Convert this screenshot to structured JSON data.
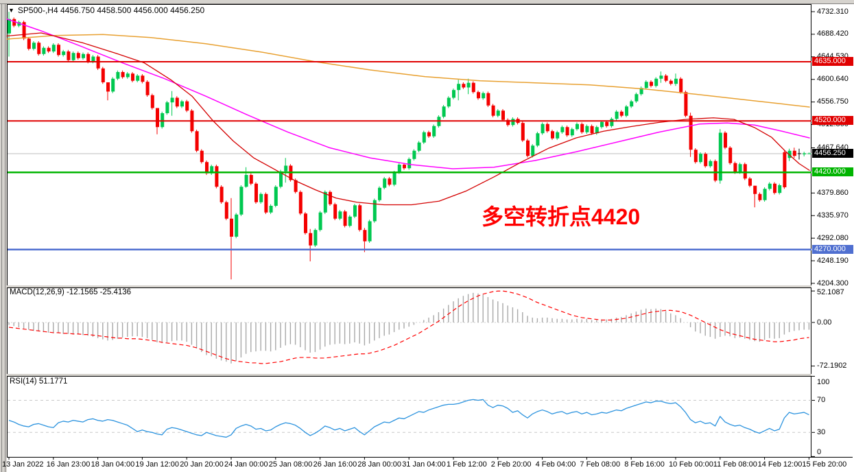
{
  "window": {
    "title_text": "SP500-,H4  4456.750 4458.500 4456.000 4456.250",
    "symbol": "SP500-",
    "timeframe": "H4",
    "ohlc": {
      "open": "4456.750",
      "high": "4458.500",
      "low": "4456.000",
      "close": "4456.250"
    }
  },
  "annotation": {
    "text": "多空转折点4420",
    "color": "#FF0000"
  },
  "colors": {
    "bull": "#00C850",
    "bear": "#F40000",
    "doji": "#000000",
    "ma_fast_red": "#D40000",
    "ma_mid_magenta": "#FF00FF",
    "ma_slow_orange": "#E8A030",
    "level_red": "#E00000",
    "level_green": "#00B400",
    "level_blue": "#4F6FD0",
    "current_price_line": "#BEBEBE",
    "macd_hist": "#A8A8A8",
    "macd_signal": "#FF0000",
    "rsi_line": "#2A92DE",
    "panel_bg": "#FFFFFF",
    "frame": "#000000",
    "window_bg": "#D6D3CE"
  },
  "levels": [
    {
      "price": 4635,
      "color": "#E00000",
      "width": 2
    },
    {
      "price": 4520,
      "color": "#E00000",
      "width": 2
    },
    {
      "price": 4420,
      "color": "#00B400",
      "width": 2.5
    },
    {
      "price": 4270,
      "color": "#4F6FD0",
      "width": 2.5
    }
  ],
  "price_axis": {
    "ticks": [
      {
        "label": "4732.310",
        "price": 4732.31
      },
      {
        "label": "4688.420",
        "price": 4688.42
      },
      {
        "label": "4644.530",
        "price": 4644.53
      },
      {
        "label": "4600.640",
        "price": 4600.64
      },
      {
        "label": "4556.750",
        "price": 4556.75
      },
      {
        "label": "4512.860",
        "price": 4512.86
      },
      {
        "label": "4467.640",
        "price": 4467.64
      },
      {
        "label": "4379.860",
        "price": 4379.86
      },
      {
        "label": "4335.970",
        "price": 4335.97
      },
      {
        "label": "4292.080",
        "price": 4292.08
      },
      {
        "label": "4248.190",
        "price": 4248.19
      },
      {
        "label": "4204.300",
        "price": 4204.3
      }
    ],
    "tags": [
      {
        "label": "4635.000",
        "price": 4635,
        "bg": "#E00000"
      },
      {
        "label": "4520.000",
        "price": 4520,
        "bg": "#E00000"
      },
      {
        "label": "4456.250",
        "price": 4456.25,
        "bg": "#000000"
      },
      {
        "label": "4420.000",
        "price": 4420,
        "bg": "#00B400"
      },
      {
        "label": "4270.000",
        "price": 4270,
        "bg": "#4F6FD0"
      }
    ]
  },
  "time_axis": {
    "labels": [
      "13 Jan 2022",
      "16 Jan 23:00",
      "18 Jan 04:00",
      "19 Jan 12:00",
      "20 Jan 20:00",
      "24 Jan 00:00",
      "25 Jan 08:00",
      "26 Jan 16:00",
      "28 Jan 00:00",
      "31 Jan 04:00",
      "1 Feb 12:00",
      "2 Feb 20:00",
      "4 Feb 04:00",
      "7 Feb 08:00",
      "8 Feb 16:00",
      "10 Feb 00:00",
      "11 Feb 08:00",
      "14 Feb 12:00",
      "15 Feb 20:00"
    ]
  },
  "indicators": {
    "macd": {
      "label": "MACD(12,26,9) -12.1565 -25.4136",
      "value_main": "-12.1565",
      "value_signal": "-25.4136",
      "axis": [
        {
          "label": "52.1087",
          "value": 52.1087
        },
        {
          "label": "0.00",
          "value": 0
        },
        {
          "label": "-72.1902",
          "value": -72.1902
        }
      ],
      "hist": [
        -4,
        -6,
        -8,
        -10,
        -12,
        -14,
        -15,
        -16,
        -17,
        -18,
        -18,
        -19,
        -19,
        -20,
        -20,
        -21,
        -22,
        -24,
        -26,
        -28,
        -30,
        -29,
        -27,
        -25,
        -24,
        -23,
        -23,
        -24,
        -26,
        -29,
        -33,
        -34,
        -33,
        -31,
        -30,
        -30,
        -32,
        -37,
        -43,
        -49,
        -54,
        -56,
        -60,
        -63,
        -65,
        -68,
        -64,
        -58,
        -52,
        -49,
        -48,
        -47,
        -47,
        -48,
        -46,
        -42,
        -38,
        -36,
        -37,
        -41,
        -46,
        -50,
        -49,
        -45,
        -40,
        -37,
        -36,
        -35,
        -36,
        -35,
        -33,
        -35,
        -38,
        -35,
        -30,
        -26,
        -22,
        -20,
        -16,
        -12,
        -10,
        -7,
        -4,
        0,
        4,
        8,
        12,
        17,
        23,
        29,
        35,
        40,
        44,
        47,
        49,
        48,
        46,
        42,
        38,
        35,
        32,
        28,
        25,
        22,
        17,
        11,
        8,
        7,
        8,
        8,
        7,
        6,
        6,
        5,
        5,
        6,
        5,
        6,
        4,
        4,
        5,
        5,
        6,
        8,
        9,
        12,
        15,
        18,
        21,
        23,
        22,
        23,
        22,
        19,
        15,
        12,
        7,
        0,
        -8,
        -15,
        -18,
        -22,
        -24,
        -27,
        -24,
        -22,
        -23,
        -26,
        -25,
        -27,
        -29,
        -31,
        -32,
        -29,
        -26,
        -27,
        -26,
        -20,
        -16,
        -14,
        -13,
        -12,
        -12
      ],
      "signal": [
        -8,
        -9,
        -10,
        -11,
        -12,
        -13,
        -14,
        -15,
        -16,
        -17,
        -17,
        -18,
        -18,
        -19,
        -19,
        -20,
        -20,
        -21,
        -22,
        -23,
        -24,
        -25,
        -26,
        -26,
        -27,
        -27,
        -27,
        -28,
        -29,
        -30,
        -31,
        -33,
        -34,
        -35,
        -36,
        -37,
        -38,
        -40,
        -42,
        -45,
        -48,
        -51,
        -54,
        -57,
        -60,
        -62,
        -64,
        -65,
        -66,
        -67,
        -67,
        -68,
        -68,
        -67,
        -66,
        -65,
        -63,
        -61,
        -59,
        -58,
        -58,
        -58,
        -59,
        -59,
        -59,
        -58,
        -57,
        -56,
        -55,
        -54,
        -53,
        -52,
        -52,
        -51,
        -49,
        -47,
        -44,
        -41,
        -38,
        -34,
        -30,
        -26,
        -22,
        -18,
        -13,
        -8,
        -3,
        2,
        8,
        14,
        20,
        26,
        31,
        36,
        40,
        44,
        47,
        49,
        51,
        52,
        52,
        51,
        49,
        47,
        44,
        41,
        37,
        33,
        30,
        27,
        24,
        21,
        18,
        15,
        12,
        10,
        8,
        7,
        6,
        5,
        4,
        4,
        4,
        5,
        6,
        7,
        9,
        11,
        13,
        15,
        17,
        18,
        19,
        20,
        20,
        19,
        18,
        15,
        12,
        8,
        4,
        0,
        -4,
        -8,
        -12,
        -15,
        -18,
        -20,
        -22,
        -24,
        -26,
        -28,
        -29,
        -30,
        -31,
        -32,
        -32,
        -31,
        -30,
        -29,
        -27,
        -26,
        -25
      ]
    },
    "rsi": {
      "label": "RSI(14) 51.1771",
      "value": "51.1771",
      "levels": [
        70,
        30
      ],
      "axis": [
        {
          "label": "100",
          "value": 100
        },
        {
          "label": "70",
          "value": 70
        },
        {
          "label": "30",
          "value": 30
        },
        {
          "label": "0",
          "value": 0
        }
      ],
      "values": [
        45,
        43,
        40,
        38,
        37,
        40,
        41,
        39,
        37,
        36,
        42,
        44,
        43,
        45,
        44,
        43,
        46,
        47,
        45,
        44,
        46,
        45,
        43,
        41,
        39,
        35,
        31,
        33,
        31,
        30,
        28,
        27,
        34,
        36,
        35,
        33,
        31,
        29,
        27,
        26,
        30,
        28,
        26,
        25,
        24,
        27,
        35,
        38,
        40,
        38,
        34,
        35,
        32,
        33,
        37,
        40,
        42,
        41,
        39,
        35,
        30,
        26,
        29,
        33,
        38,
        36,
        33,
        35,
        32,
        34,
        36,
        31,
        27,
        32,
        37,
        40,
        43,
        42,
        45,
        48,
        47,
        50,
        53,
        56,
        55,
        58,
        60,
        62,
        64,
        65,
        65,
        66,
        68,
        70,
        71,
        70,
        71,
        64,
        61,
        64,
        63,
        60,
        55,
        57,
        52,
        48,
        53,
        56,
        58,
        56,
        53,
        55,
        56,
        53,
        55,
        56,
        53,
        55,
        52,
        53,
        55,
        54,
        56,
        58,
        57,
        60,
        62,
        64,
        66,
        68,
        67,
        69,
        69,
        67,
        66,
        67,
        62,
        55,
        46,
        42,
        44,
        41,
        42,
        38,
        50,
        43,
        40,
        38,
        39,
        36,
        34,
        31,
        29,
        32,
        35,
        32,
        34,
        48,
        55,
        53,
        54,
        55,
        52
      ]
    }
  },
  "chart_data": {
    "type": "candlestick",
    "title": "SP500-,H4",
    "symbol": "SP500",
    "timeframe": "H4",
    "ylim": [
      4204.3,
      4732.31
    ],
    "open_first": 4690,
    "closes": [
      4718,
      4705,
      4712,
      4680,
      4660,
      4672,
      4650,
      4662,
      4655,
      4668,
      4648,
      4655,
      4638,
      4652,
      4642,
      4650,
      4635,
      4645,
      4622,
      4595,
      4577,
      4602,
      4615,
      4605,
      4612,
      4598,
      4608,
      4596,
      4570,
      4545,
      4508,
      4535,
      4556,
      4565,
      4548,
      4558,
      4540,
      4500,
      4462,
      4440,
      4418,
      4432,
      4392,
      4362,
      4330,
      4295,
      4338,
      4392,
      4415,
      4398,
      4362,
      4378,
      4342,
      4355,
      4392,
      4422,
      4433,
      4405,
      4382,
      4340,
      4302,
      4278,
      4308,
      4342,
      4382,
      4358,
      4330,
      4344,
      4316,
      4334,
      4356,
      4308,
      4286,
      4325,
      4366,
      4390,
      4408,
      4396,
      4420,
      4435,
      4428,
      4446,
      4462,
      4478,
      4498,
      4490,
      4510,
      4528,
      4548,
      4565,
      4580,
      4592,
      4585,
      4594,
      4576,
      4564,
      4574,
      4550,
      4530,
      4540,
      4522,
      4512,
      4524,
      4516,
      4482,
      4452,
      4472,
      4496,
      4514,
      4500,
      4486,
      4498,
      4508,
      4492,
      4504,
      4514,
      4498,
      4510,
      4496,
      4508,
      4518,
      4510,
      4524,
      4538,
      4530,
      4548,
      4558,
      4572,
      4584,
      4596,
      4588,
      4602,
      4608,
      4598,
      4592,
      4602,
      4576,
      4530,
      4464,
      4440,
      4456,
      4432,
      4442,
      4404,
      4497,
      4468,
      4438,
      4420,
      4436,
      4408,
      4394,
      4378,
      4366,
      4388,
      4398,
      4380,
      4395,
      4391,
      4462,
      4452,
      4456,
      4457,
      4456.25
    ],
    "wicks": {
      "0": [
        4732,
        4645
      ],
      "20": [
        4584,
        4560
      ],
      "30": [
        4542,
        4494
      ],
      "33": [
        4578,
        4530
      ],
      "45": [
        4370,
        4212
      ],
      "48": [
        4430,
        4390
      ],
      "56": [
        4448,
        4400
      ],
      "61": [
        4310,
        4247
      ],
      "72": [
        4312,
        4265
      ],
      "91": [
        4600,
        4560
      ],
      "93": [
        4602,
        4572
      ],
      "132": [
        4616,
        4594
      ],
      "135": [
        4612,
        4588
      ],
      "138": [
        4536,
        4450
      ],
      "144": [
        4504,
        4398
      ],
      "151": [
        4394,
        4352
      ]
    },
    "explicit": {
      "157": [
        4459,
        4462,
        4388,
        4391
      ],
      "158": [
        4448,
        4466,
        4442,
        4462
      ],
      "159": [
        4462,
        4468,
        4448,
        4452
      ],
      "160": [
        4457,
        4466,
        4445,
        4456
      ],
      "161": [
        4455,
        4460,
        4451,
        4457
      ],
      "162": [
        4456.75,
        4458.5,
        4456,
        4456.25
      ]
    },
    "color_overrides": {
      "160": "#000000",
      "162": "#00C850"
    },
    "ma_slow_orange": [
      [
        10,
        4679
      ],
      [
        80,
        4686
      ],
      [
        150,
        4688
      ],
      [
        220,
        4682
      ],
      [
        300,
        4670
      ],
      [
        380,
        4654
      ],
      [
        460,
        4635
      ],
      [
        540,
        4619
      ],
      [
        620,
        4606
      ],
      [
        700,
        4598
      ],
      [
        780,
        4594
      ],
      [
        860,
        4590
      ],
      [
        940,
        4582
      ],
      [
        1020,
        4571
      ],
      [
        1100,
        4559
      ],
      [
        1180,
        4547
      ]
    ],
    "ma_mid_magenta": [
      [
        10,
        4718
      ],
      [
        60,
        4695
      ],
      [
        120,
        4664
      ],
      [
        180,
        4632
      ],
      [
        240,
        4602
      ],
      [
        300,
        4568
      ],
      [
        360,
        4532
      ],
      [
        420,
        4498
      ],
      [
        480,
        4468
      ],
      [
        540,
        4448
      ],
      [
        600,
        4435
      ],
      [
        660,
        4427
      ],
      [
        720,
        4430
      ],
      [
        780,
        4443
      ],
      [
        840,
        4460
      ],
      [
        900,
        4479
      ],
      [
        960,
        4498
      ],
      [
        1020,
        4514
      ],
      [
        1060,
        4516
      ],
      [
        1100,
        4512
      ],
      [
        1140,
        4500
      ],
      [
        1180,
        4487
      ]
    ],
    "ma_fast_red": [
      [
        10,
        4685
      ],
      [
        60,
        4691
      ],
      [
        120,
        4672
      ],
      [
        170,
        4651
      ],
      [
        210,
        4633
      ],
      [
        250,
        4599
      ],
      [
        280,
        4568
      ],
      [
        310,
        4521
      ],
      [
        340,
        4481
      ],
      [
        370,
        4448
      ],
      [
        400,
        4426
      ],
      [
        430,
        4404
      ],
      [
        460,
        4386
      ],
      [
        490,
        4370
      ],
      [
        520,
        4362
      ],
      [
        560,
        4357
      ],
      [
        600,
        4357
      ],
      [
        640,
        4364
      ],
      [
        680,
        4384
      ],
      [
        720,
        4411
      ],
      [
        760,
        4440
      ],
      [
        800,
        4467
      ],
      [
        840,
        4487
      ],
      [
        880,
        4500
      ],
      [
        920,
        4509
      ],
      [
        960,
        4517
      ],
      [
        1000,
        4523
      ],
      [
        1040,
        4526
      ],
      [
        1070,
        4523
      ],
      [
        1100,
        4507
      ],
      [
        1125,
        4488
      ],
      [
        1145,
        4461
      ],
      [
        1165,
        4437
      ],
      [
        1180,
        4424
      ]
    ]
  }
}
